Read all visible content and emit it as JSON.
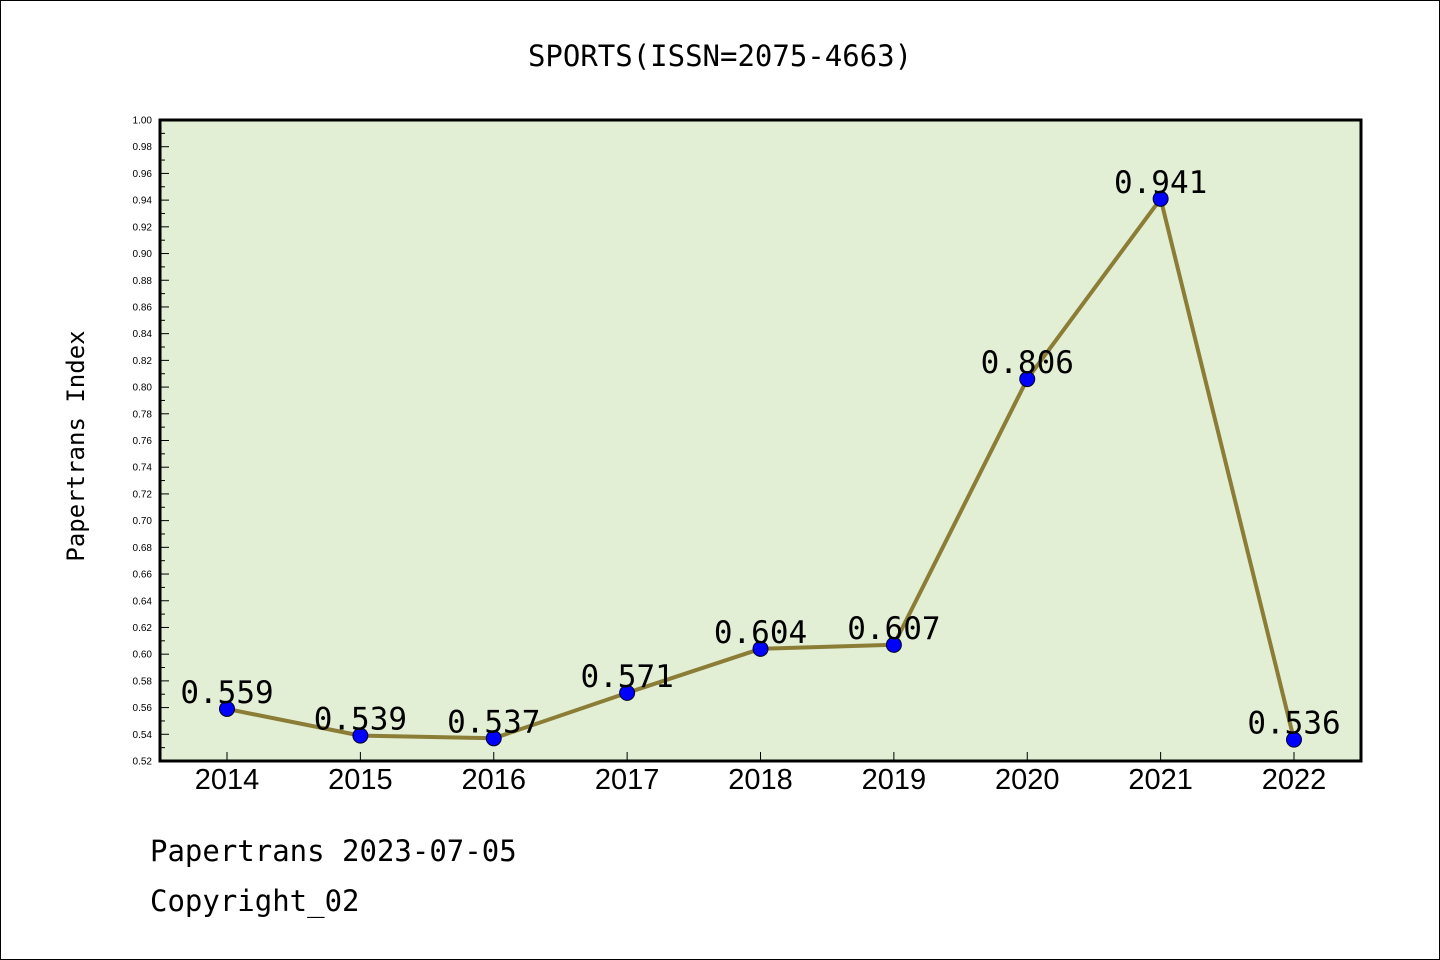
{
  "chart_data": {
    "type": "line",
    "title": "SPORTS(ISSN=2075-4663)",
    "xlabel": "",
    "ylabel": "Papertrans Index",
    "categories": [
      "2014",
      "2015",
      "2016",
      "2017",
      "2018",
      "2019",
      "2020",
      "2021",
      "2022"
    ],
    "values": [
      0.559,
      0.539,
      0.537,
      0.571,
      0.604,
      0.607,
      0.806,
      0.941,
      0.536
    ],
    "data_labels": [
      "0.559",
      "0.539",
      "0.537",
      "0.571",
      "0.604",
      "0.607",
      "0.806",
      "0.941",
      "0.536"
    ],
    "ylim": [
      0.52,
      1.0
    ],
    "yticks": [
      "0.52",
      "0.54",
      "0.56",
      "0.58",
      "0.60",
      "0.62",
      "0.64",
      "0.66",
      "0.68",
      "0.70",
      "0.72",
      "0.74",
      "0.76",
      "0.78",
      "0.80",
      "0.82",
      "0.84",
      "0.86",
      "0.88",
      "0.90",
      "0.92",
      "0.94",
      "0.96",
      "0.98",
      "1.00"
    ],
    "grid": false,
    "legend": "none",
    "colors": {
      "plot_background": "#e2efd5",
      "line": "#8b7d35",
      "marker": "#0000ff"
    }
  },
  "footer": {
    "line1": "Papertrans 2023-07-05",
    "line2": "Copyright_02"
  }
}
